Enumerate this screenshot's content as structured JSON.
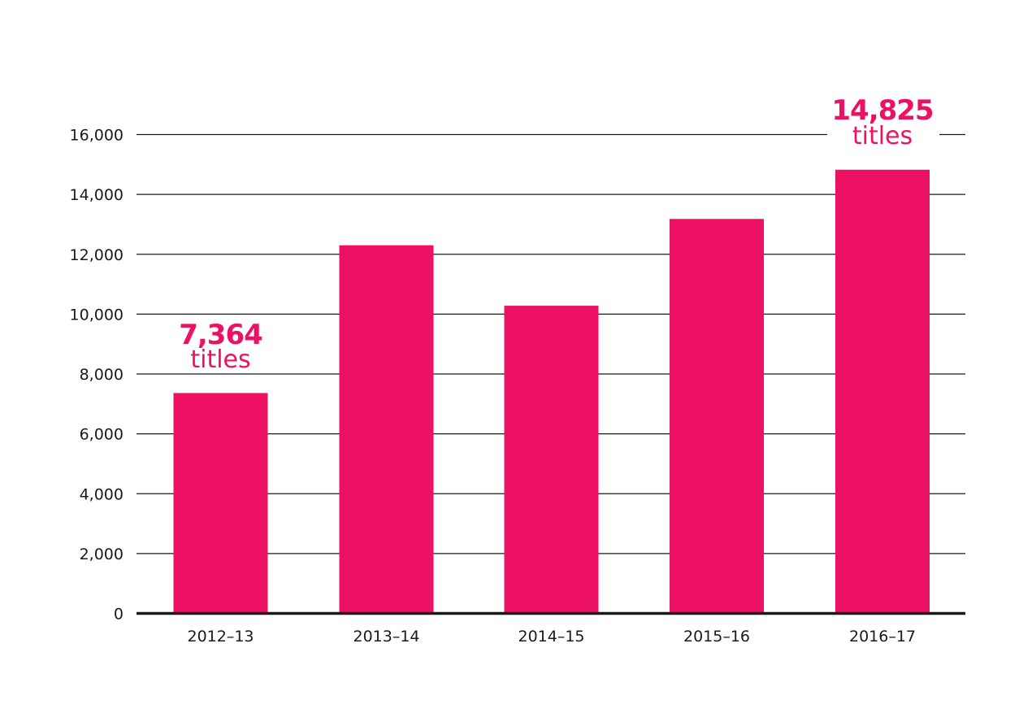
{
  "chart_data": {
    "type": "bar",
    "categories": [
      "2012–13",
      "2013–14",
      "2014–15",
      "2015–16",
      "2016–17"
    ],
    "values": [
      7364,
      12300,
      10280,
      13180,
      14825
    ],
    "ylim": [
      0,
      16000
    ],
    "yticks": [
      0,
      2000,
      4000,
      6000,
      8000,
      10000,
      12000,
      14000,
      16000
    ],
    "ytick_labels": [
      "0",
      "2,000",
      "4,000",
      "6,000",
      "8,000",
      "10,000",
      "12,000",
      "14,000",
      "16,000"
    ],
    "grid": true,
    "bar_color": "#ED1164",
    "axis_color": "#1a1a1a",
    "annotations": [
      {
        "category_index": 0,
        "value_text": "7,364",
        "unit_text": "titles"
      },
      {
        "category_index": 4,
        "value_text": "14,825",
        "unit_text": "titles"
      }
    ]
  }
}
